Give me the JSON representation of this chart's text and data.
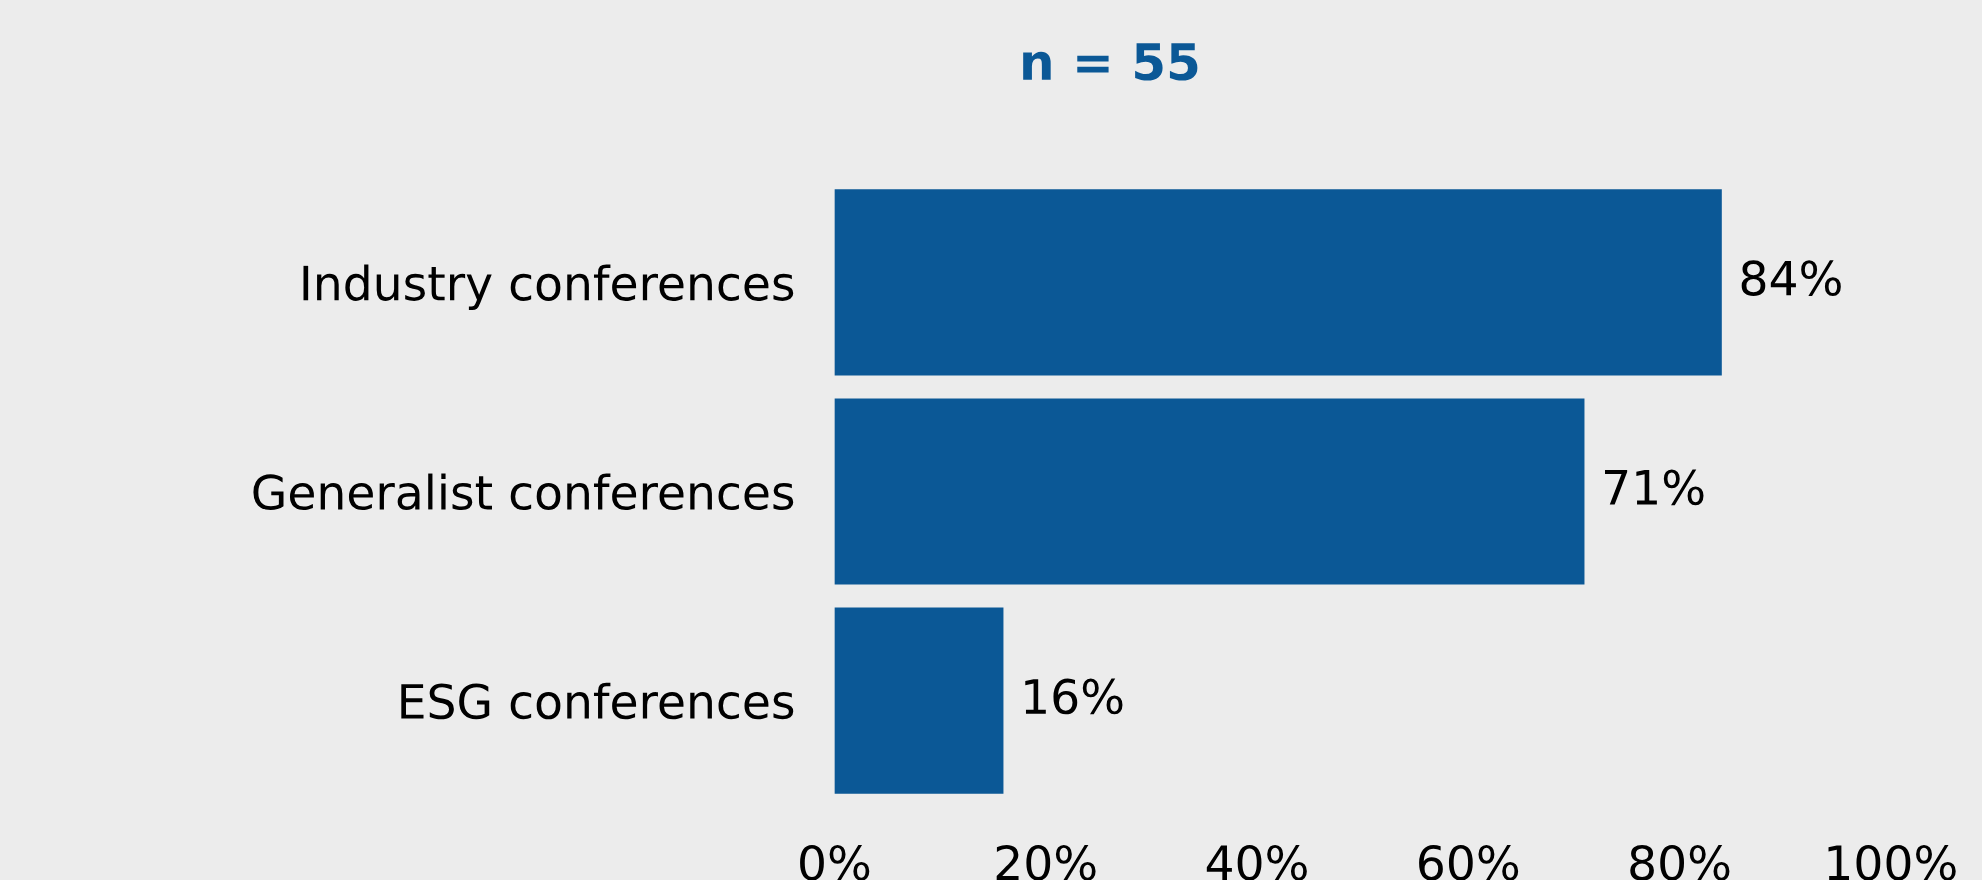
{
  "chart_data": {
    "type": "bar",
    "orientation": "horizontal",
    "title": "n = 55",
    "categories": [
      "Industry conferences",
      "Generalist conferences",
      "ESG conferences"
    ],
    "values": [
      84,
      71,
      16
    ],
    "color": "#0b5896",
    "xlim": [
      0,
      100
    ],
    "xticks": [
      {
        "value": 0,
        "label": "0%"
      },
      {
        "value": 20,
        "label": "20%"
      },
      {
        "value": 40,
        "label": "40%"
      },
      {
        "value": 60,
        "label": "60%"
      },
      {
        "value": 80,
        "label": "80%"
      },
      {
        "value": 100,
        "label": "100%"
      }
    ],
    "value_labels": [
      "84%",
      "71%",
      "16%"
    ],
    "grid": false,
    "legend": false
  }
}
